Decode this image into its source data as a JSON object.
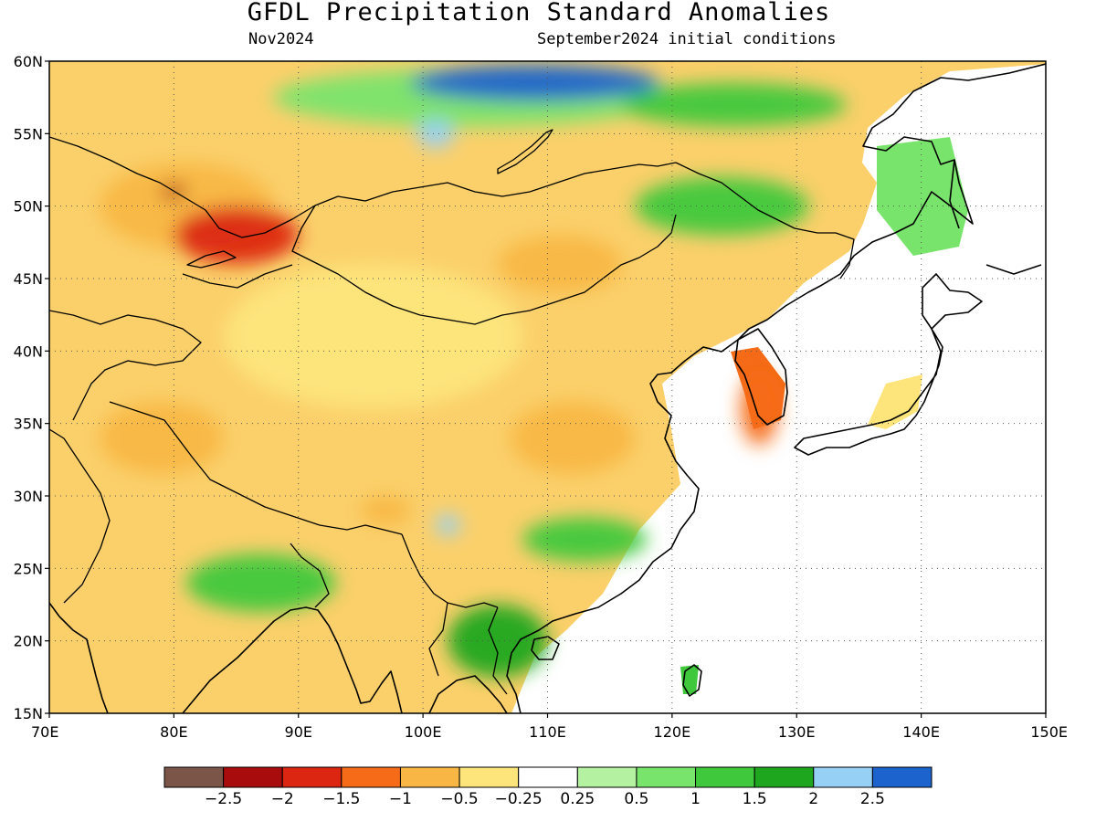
{
  "title": "GFDL Precipitation Standard Anomalies",
  "subtitle_left": "Nov2024",
  "subtitle_right": "September2024 initial conditions",
  "map": {
    "lon_range": [
      70,
      150
    ],
    "lat_range": [
      15,
      60
    ],
    "x_ticks": [
      "70E",
      "80E",
      "90E",
      "100E",
      "110E",
      "120E",
      "130E",
      "140E",
      "150E"
    ],
    "y_ticks": [
      "15N",
      "20N",
      "25N",
      "30N",
      "35N",
      "40N",
      "45N",
      "50N",
      "55N",
      "60N"
    ],
    "gridlines": "dotted",
    "ocean_color": "#ffffff",
    "coastline_color": "#000000"
  },
  "legend": {
    "colors": [
      "#7a5548",
      "#a80c0c",
      "#dc2612",
      "#f56b18",
      "#f8b745",
      "#fde57c",
      "#ffffff",
      "#b4f2a2",
      "#78e46c",
      "#3fc83c",
      "#1ea61e",
      "#96d0f5",
      "#1d63cd"
    ],
    "labels": [
      "−2.5",
      "−2",
      "−1.5",
      "−1",
      "−0.5",
      "−0.25",
      "0.25",
      "0.5",
      "1",
      "1.5",
      "2",
      "2.5"
    ]
  },
  "anomaly_regions": [
    {
      "category": 8,
      "center": [
        104,
        57.5
      ],
      "extent": [
        32,
        4
      ]
    },
    {
      "category": 12,
      "center": [
        109,
        58.5
      ],
      "extent": [
        20,
        2.5
      ]
    },
    {
      "category": 11,
      "center": [
        101,
        55
      ],
      "extent": [
        3,
        2
      ]
    },
    {
      "category": 9,
      "center": [
        125,
        57
      ],
      "extent": [
        18,
        3
      ]
    },
    {
      "category": 4,
      "center": [
        81,
        50
      ],
      "extent": [
        14,
        6
      ]
    },
    {
      "category": 2,
      "center": [
        85,
        48
      ],
      "extent": [
        10,
        4
      ]
    },
    {
      "category": 1,
      "center": [
        80,
        51
      ],
      "extent": [
        2,
        1
      ]
    },
    {
      "category": 5,
      "center": [
        96,
        41
      ],
      "extent": [
        24,
        10
      ]
    },
    {
      "category": 4,
      "center": [
        111,
        46
      ],
      "extent": [
        10,
        4
      ]
    },
    {
      "category": 4,
      "center": [
        112,
        34
      ],
      "extent": [
        10,
        5
      ]
    },
    {
      "category": 4,
      "center": [
        79,
        34
      ],
      "extent": [
        10,
        5
      ]
    },
    {
      "category": 4,
      "center": [
        97,
        29
      ],
      "extent": [
        4,
        2
      ]
    },
    {
      "category": 3,
      "center": [
        127,
        36
      ],
      "extent": [
        3,
        5
      ]
    },
    {
      "category": 9,
      "center": [
        87,
        24
      ],
      "extent": [
        12,
        4
      ]
    },
    {
      "category": 10,
      "center": [
        106,
        20
      ],
      "extent": [
        8,
        5
      ]
    },
    {
      "category": 9,
      "center": [
        113,
        27
      ],
      "extent": [
        10,
        3
      ]
    },
    {
      "category": 11,
      "center": [
        102,
        28
      ],
      "extent": [
        2,
        1.5
      ]
    },
    {
      "category": 9,
      "center": [
        124,
        50
      ],
      "extent": [
        14,
        4
      ]
    }
  ]
}
